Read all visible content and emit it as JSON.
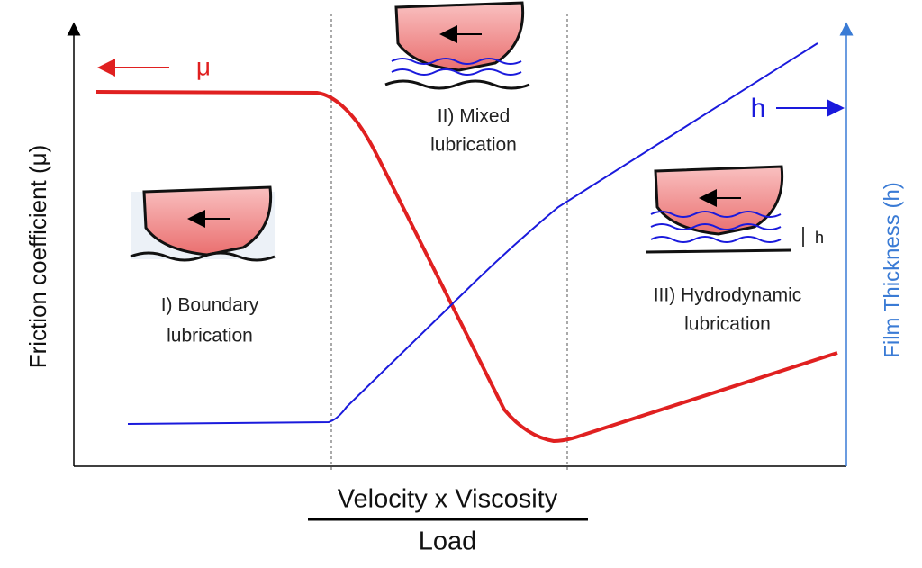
{
  "axes": {
    "left_label": "Friction coefficient (μ)",
    "right_label": "Film Thickness (h)",
    "x_numerator": "Velocity x Viscosity",
    "x_denominator": "Load"
  },
  "curves": {
    "friction": "μ",
    "thickness": "h"
  },
  "regions": [
    {
      "label": [
        "I) Boundary",
        "lubrication"
      ]
    },
    {
      "label": [
        "II) Mixed",
        "lubrication"
      ]
    },
    {
      "label": [
        "III) Hydrodynamic",
        "lubrication"
      ]
    }
  ],
  "film_label": "h"
}
